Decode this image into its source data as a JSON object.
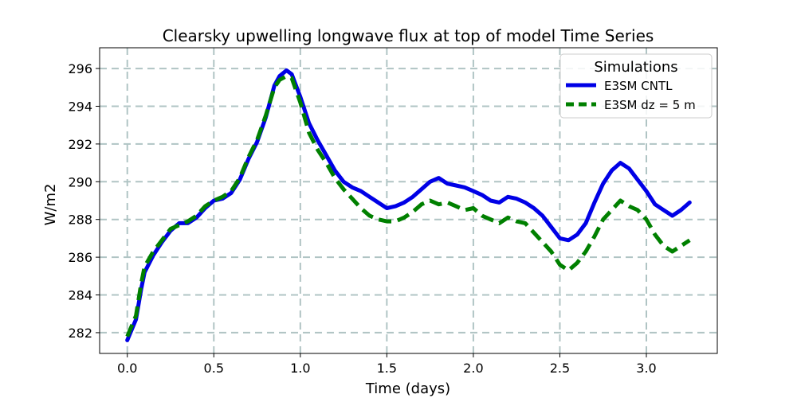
{
  "chart_data": {
    "type": "line",
    "title": "Clearsky upwelling longwave flux at top of model Time Series",
    "xlabel": "Time (days)",
    "ylabel": "W/m2",
    "xlim": [
      -0.16,
      3.41
    ],
    "ylim": [
      280.9,
      297.1
    ],
    "xticks": [
      0.0,
      0.5,
      1.0,
      1.5,
      2.0,
      2.5,
      3.0
    ],
    "xtick_labels": [
      "0.0",
      "0.5",
      "1.0",
      "1.5",
      "2.0",
      "2.5",
      "3.0"
    ],
    "yticks": [
      282,
      284,
      286,
      288,
      290,
      292,
      294,
      296
    ],
    "ytick_labels": [
      "282",
      "284",
      "286",
      "288",
      "290",
      "292",
      "294",
      "296"
    ],
    "grid": true,
    "legend": {
      "title": "Simulations",
      "placement": "top-right"
    },
    "series": [
      {
        "name": "E3SM CNTL",
        "color": "#0000e6",
        "style": "solid",
        "x": [
          0.0,
          0.05,
          0.08,
          0.1,
          0.15,
          0.2,
          0.25,
          0.3,
          0.35,
          0.4,
          0.45,
          0.5,
          0.55,
          0.6,
          0.65,
          0.7,
          0.75,
          0.8,
          0.85,
          0.88,
          0.92,
          0.95,
          1.0,
          1.05,
          1.1,
          1.15,
          1.2,
          1.25,
          1.3,
          1.35,
          1.4,
          1.45,
          1.5,
          1.55,
          1.6,
          1.65,
          1.7,
          1.75,
          1.8,
          1.85,
          1.9,
          1.95,
          2.0,
          2.05,
          2.1,
          2.15,
          2.2,
          2.25,
          2.3,
          2.35,
          2.4,
          2.45,
          2.5,
          2.55,
          2.6,
          2.65,
          2.7,
          2.75,
          2.8,
          2.85,
          2.9,
          2.95,
          3.0,
          3.05,
          3.1,
          3.15,
          3.2,
          3.25
        ],
        "y": [
          281.6,
          282.7,
          284.3,
          285.2,
          286.1,
          286.8,
          287.4,
          287.8,
          287.8,
          288.1,
          288.6,
          289.0,
          289.1,
          289.4,
          290.1,
          291.2,
          292.1,
          293.4,
          295.1,
          295.6,
          295.9,
          295.7,
          294.5,
          293.1,
          292.2,
          291.4,
          290.6,
          290.0,
          289.7,
          289.5,
          289.2,
          288.9,
          288.6,
          288.7,
          288.9,
          289.2,
          289.6,
          290.0,
          290.2,
          289.9,
          289.8,
          289.7,
          289.5,
          289.3,
          289.0,
          288.9,
          289.2,
          289.1,
          288.9,
          288.6,
          288.2,
          287.6,
          287.0,
          286.9,
          287.2,
          287.8,
          288.9,
          289.9,
          290.6,
          291.0,
          290.7,
          290.1,
          289.5,
          288.8,
          288.5,
          288.2,
          288.5,
          288.9
        ]
      },
      {
        "name": "E3SM dz = 5 m",
        "color": "#008000",
        "style": "dashed",
        "x": [
          0.0,
          0.05,
          0.08,
          0.1,
          0.15,
          0.2,
          0.25,
          0.3,
          0.35,
          0.4,
          0.45,
          0.5,
          0.55,
          0.6,
          0.65,
          0.7,
          0.75,
          0.8,
          0.85,
          0.88,
          0.92,
          0.95,
          1.0,
          1.05,
          1.1,
          1.15,
          1.2,
          1.25,
          1.3,
          1.35,
          1.4,
          1.45,
          1.5,
          1.55,
          1.6,
          1.65,
          1.7,
          1.75,
          1.8,
          1.85,
          1.9,
          1.95,
          2.0,
          2.05,
          2.1,
          2.15,
          2.2,
          2.25,
          2.3,
          2.35,
          2.4,
          2.45,
          2.5,
          2.55,
          2.6,
          2.65,
          2.7,
          2.75,
          2.8,
          2.85,
          2.9,
          2.95,
          3.0,
          3.05,
          3.1,
          3.15,
          3.2,
          3.25
        ],
        "y": [
          281.8,
          282.9,
          284.6,
          285.5,
          286.3,
          286.9,
          287.5,
          287.7,
          287.9,
          288.2,
          288.7,
          289.0,
          289.2,
          289.5,
          290.2,
          291.3,
          292.2,
          293.5,
          295.0,
          295.4,
          295.6,
          295.5,
          294.2,
          292.6,
          291.7,
          291.0,
          290.2,
          289.6,
          289.1,
          288.6,
          288.2,
          288.0,
          287.9,
          287.9,
          288.1,
          288.4,
          288.8,
          289.0,
          288.8,
          288.9,
          288.7,
          288.5,
          288.6,
          288.2,
          288.0,
          287.8,
          288.1,
          287.9,
          287.8,
          287.3,
          286.8,
          286.3,
          285.6,
          285.3,
          285.7,
          286.3,
          287.1,
          288.0,
          288.5,
          289.0,
          288.7,
          288.5,
          288.0,
          287.2,
          286.6,
          286.3,
          286.6,
          286.9
        ]
      }
    ]
  }
}
